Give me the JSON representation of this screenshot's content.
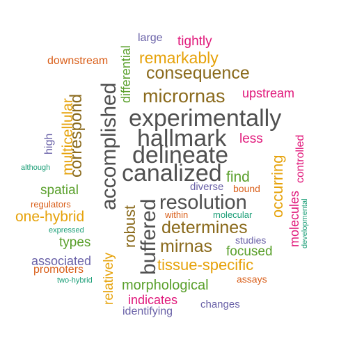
{
  "palette": {
    "gray": "#505050",
    "brown": "#8a6a1c",
    "gold": "#e6a20a",
    "green": "#5aa02c",
    "orange": "#d95f1a",
    "purple": "#6a62a8",
    "magenta": "#e0177a",
    "teal": "#1b9e77"
  },
  "words": [
    {
      "text": "experimentally",
      "color": "gray"
    },
    {
      "text": "canalized",
      "color": "gray"
    },
    {
      "text": "hallmark",
      "color": "gray"
    },
    {
      "text": "delineate",
      "color": "gray"
    },
    {
      "text": "resolution",
      "color": "gray"
    },
    {
      "text": "accomplished",
      "color": "gray"
    },
    {
      "text": "buffered",
      "color": "gray"
    },
    {
      "text": "consequence",
      "color": "brown"
    },
    {
      "text": "micrornas",
      "color": "brown"
    },
    {
      "text": "determines",
      "color": "brown"
    },
    {
      "text": "mirnas",
      "color": "brown"
    },
    {
      "text": "correspond",
      "color": "brown"
    },
    {
      "text": "robust",
      "color": "brown"
    },
    {
      "text": "remarkably",
      "color": "gold"
    },
    {
      "text": "tissue-specific",
      "color": "gold"
    },
    {
      "text": "one-hybrid",
      "color": "gold"
    },
    {
      "text": "multicellular",
      "color": "gold"
    },
    {
      "text": "occurring",
      "color": "gold"
    },
    {
      "text": "relatively",
      "color": "gold"
    },
    {
      "text": "find",
      "color": "green"
    },
    {
      "text": "morphological",
      "color": "green"
    },
    {
      "text": "spatial",
      "color": "green"
    },
    {
      "text": "focused",
      "color": "green"
    },
    {
      "text": "types",
      "color": "green"
    },
    {
      "text": "differential",
      "color": "green"
    },
    {
      "text": "tightly",
      "color": "magenta"
    },
    {
      "text": "upstream",
      "color": "magenta"
    },
    {
      "text": "less",
      "color": "magenta"
    },
    {
      "text": "indicates",
      "color": "magenta"
    },
    {
      "text": "molecules",
      "color": "magenta"
    },
    {
      "text": "controlled",
      "color": "magenta"
    },
    {
      "text": "associated",
      "color": "purple"
    },
    {
      "text": "large",
      "color": "purple"
    },
    {
      "text": "diverse",
      "color": "purple"
    },
    {
      "text": "changes",
      "color": "purple"
    },
    {
      "text": "identifying",
      "color": "purple"
    },
    {
      "text": "studies",
      "color": "purple"
    },
    {
      "text": "high",
      "color": "purple"
    },
    {
      "text": "downstream",
      "color": "orange"
    },
    {
      "text": "promoters",
      "color": "orange"
    },
    {
      "text": "regulators",
      "color": "orange"
    },
    {
      "text": "within",
      "color": "orange"
    },
    {
      "text": "bound",
      "color": "orange"
    },
    {
      "text": "assays",
      "color": "orange"
    },
    {
      "text": "although",
      "color": "teal"
    },
    {
      "text": "expressed",
      "color": "teal"
    },
    {
      "text": "two-hybrid",
      "color": "teal"
    },
    {
      "text": "molecular",
      "color": "teal"
    },
    {
      "text": "developmental",
      "color": "teal"
    }
  ]
}
